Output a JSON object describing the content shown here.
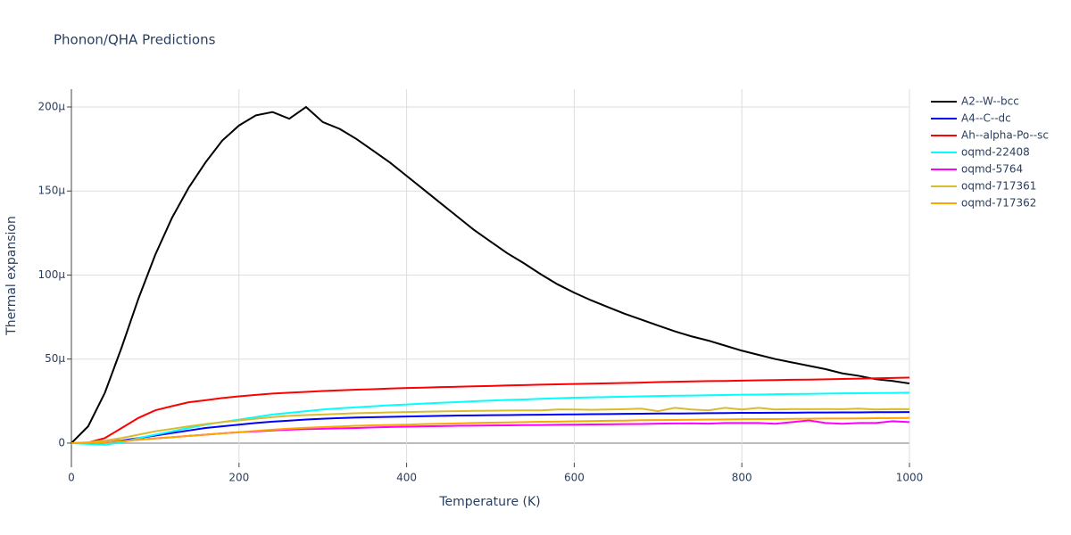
{
  "chart_data": {
    "type": "line",
    "title": "Phonon/QHA Predictions",
    "x_label": "Temperature (K)",
    "y_label": "Thermal expansion",
    "x": [
      0,
      20,
      40,
      60,
      80,
      100,
      120,
      140,
      160,
      180,
      200,
      220,
      240,
      260,
      280,
      300,
      320,
      340,
      360,
      380,
      400,
      420,
      440,
      460,
      480,
      500,
      520,
      540,
      560,
      580,
      600,
      620,
      640,
      660,
      680,
      700,
      720,
      740,
      760,
      780,
      800,
      820,
      840,
      860,
      880,
      900,
      920,
      940,
      960,
      980,
      1000
    ],
    "xlim": [
      0,
      1000
    ],
    "xticks": [
      0,
      200,
      400,
      600,
      800,
      1000
    ],
    "ylim": [
      -1.17e-05,
      0.0002106
    ],
    "yticks": [
      0,
      {
        "value": 5e-05,
        "label": "50µ"
      },
      {
        "value": 0.0001,
        "label": "100µ"
      },
      {
        "value": 0.00015,
        "label": "150µ"
      },
      {
        "value": 0.0002,
        "label": "200µ"
      }
    ],
    "grid": true,
    "series": [
      {
        "name": "A2--W--bcc",
        "color": "#000000",
        "values": [
          0.0,
          1e-05,
          3e-05,
          5.7e-05,
          8.6e-05,
          0.000112,
          0.000134,
          0.000152,
          0.000167,
          0.00018,
          0.000189,
          0.000195,
          0.000197,
          0.000193,
          0.0002,
          0.000191,
          0.000187,
          0.000181,
          0.000174,
          0.000167,
          0.000159,
          0.000151,
          0.000143,
          0.000135,
          0.000127,
          0.00012,
          0.000113,
          0.000107,
          0.0001005,
          9.45e-05,
          8.95e-05,
          8.5e-05,
          8.1e-05,
          7.7e-05,
          7.35e-05,
          7e-05,
          6.65e-05,
          6.35e-05,
          6.1e-05,
          5.8e-05,
          5.5e-05,
          5.25e-05,
          5e-05,
          4.8e-05,
          4.6e-05,
          4.4e-05,
          4.15e-05,
          4e-05,
          3.8e-05,
          3.7e-05,
          3.55e-05
        ]
      },
      {
        "name": "A4--C--dc",
        "color": "#0000ff",
        "values": [
          0.0,
          0.0,
          5e-07,
          1.5e-06,
          3e-06,
          4.5e-06,
          6e-06,
          7.5e-06,
          9e-06,
          1e-05,
          1.1e-05,
          1.2e-05,
          1.28e-05,
          1.34e-05,
          1.4e-05,
          1.45e-05,
          1.49e-05,
          1.52e-05,
          1.54e-05,
          1.56e-05,
          1.58e-05,
          1.6e-05,
          1.62e-05,
          1.64e-05,
          1.65e-05,
          1.66e-05,
          1.67e-05,
          1.68e-05,
          1.69e-05,
          1.7e-05,
          1.71e-05,
          1.72e-05,
          1.73e-05,
          1.74e-05,
          1.75e-05,
          1.76e-05,
          1.76e-05,
          1.77e-05,
          1.78e-05,
          1.79e-05,
          1.8e-05,
          1.8e-05,
          1.81e-05,
          1.81e-05,
          1.82e-05,
          1.82e-05,
          1.83e-05,
          1.83e-05,
          1.84e-05,
          1.84e-05,
          1.85e-05
        ]
      },
      {
        "name": "Ah--alpha-Po--sc",
        "color": "#ff0000",
        "values": [
          0.0,
          3e-07,
          3e-06,
          9e-06,
          1.5e-05,
          1.95e-05,
          2.2e-05,
          2.43e-05,
          2.55e-05,
          2.68e-05,
          2.78e-05,
          2.87e-05,
          2.95e-05,
          3e-05,
          3.05e-05,
          3.1e-05,
          3.14e-05,
          3.18e-05,
          3.21e-05,
          3.25e-05,
          3.28e-05,
          3.3e-05,
          3.33e-05,
          3.35e-05,
          3.38e-05,
          3.4e-05,
          3.43e-05,
          3.45e-05,
          3.48e-05,
          3.5e-05,
          3.52e-05,
          3.54e-05,
          3.56e-05,
          3.58e-05,
          3.6e-05,
          3.63e-05,
          3.65e-05,
          3.67e-05,
          3.69e-05,
          3.7e-05,
          3.72e-05,
          3.74e-05,
          3.75e-05,
          3.77e-05,
          3.78e-05,
          3.8e-05,
          3.82e-05,
          3.84e-05,
          3.86e-05,
          3.88e-05,
          3.9e-05
        ]
      },
      {
        "name": "oqmd-22408",
        "color": "#00ffff",
        "values": [
          0.0,
          -5e-07,
          -1e-06,
          5e-07,
          3e-06,
          5e-06,
          7e-06,
          9e-06,
          1.1e-05,
          1.25e-05,
          1.4e-05,
          1.55e-05,
          1.7e-05,
          1.8e-05,
          1.9e-05,
          2e-05,
          2.07e-05,
          2.13e-05,
          2.19e-05,
          2.25e-05,
          2.3e-05,
          2.35e-05,
          2.4e-05,
          2.44e-05,
          2.49e-05,
          2.53e-05,
          2.57e-05,
          2.6e-05,
          2.64e-05,
          2.67e-05,
          2.7e-05,
          2.72e-05,
          2.74e-05,
          2.76e-05,
          2.78e-05,
          2.8e-05,
          2.82e-05,
          2.83e-05,
          2.85e-05,
          2.86e-05,
          2.88e-05,
          2.89e-05,
          2.91e-05,
          2.92e-05,
          2.93e-05,
          2.95e-05,
          2.96e-05,
          2.97e-05,
          2.98e-05,
          2.99e-05,
          3e-05
        ]
      },
      {
        "name": "oqmd-5764",
        "color": "#ff00ff",
        "values": [
          0.0,
          0.0,
          5e-07,
          1.2e-06,
          2e-06,
          2.8e-06,
          3.5e-06,
          4.3e-06,
          5e-06,
          5.8e-06,
          6.5e-06,
          7e-06,
          7.5e-06,
          8e-06,
          8.3e-06,
          8.5e-06,
          8.8e-06,
          9e-06,
          9.3e-06,
          9.6e-06,
          9.8e-06,
          1e-05,
          1.01e-05,
          1.03e-05,
          1.04e-05,
          1.05e-05,
          1.06e-05,
          1.07e-05,
          1.08e-05,
          1.09e-05,
          1.1e-05,
          1.11e-05,
          1.12e-05,
          1.13e-05,
          1.14e-05,
          1.16e-05,
          1.17e-05,
          1.18e-05,
          1.16e-05,
          1.2e-05,
          1.2e-05,
          1.2e-05,
          1.15e-05,
          1.25e-05,
          1.35e-05,
          1.2e-05,
          1.15e-05,
          1.2e-05,
          1.2e-05,
          1.3e-05,
          1.25e-05
        ]
      },
      {
        "name": "oqmd-717361",
        "color": "#d9bb2e",
        "values": [
          0.0,
          5e-07,
          1.5e-06,
          3e-06,
          5e-06,
          7e-06,
          8.5e-06,
          1e-05,
          1.13e-05,
          1.25e-05,
          1.35e-05,
          1.45e-05,
          1.55e-05,
          1.62e-05,
          1.67e-05,
          1.7e-05,
          1.74e-05,
          1.78e-05,
          1.8e-05,
          1.83e-05,
          1.85e-05,
          1.87e-05,
          1.89e-05,
          1.9e-05,
          1.92e-05,
          1.93e-05,
          1.94e-05,
          1.95e-05,
          1.95e-05,
          2e-05,
          2e-05,
          1.98e-05,
          2e-05,
          2.02e-05,
          2.05e-05,
          1.9e-05,
          2.1e-05,
          2e-05,
          1.95e-05,
          2.1e-05,
          2e-05,
          2.1e-05,
          2e-05,
          2.03e-05,
          2.02e-05,
          2.03e-05,
          2.02e-05,
          2.05e-05,
          2e-05,
          2.03e-05,
          2.02e-05
        ]
      },
      {
        "name": "oqmd-717362",
        "color": "#ffa500",
        "values": [
          0.0,
          0.0,
          5e-07,
          1.2e-06,
          2e-06,
          2.8e-06,
          3.5e-06,
          4.3e-06,
          5e-06,
          5.8e-06,
          6.5e-06,
          7.3e-06,
          8e-06,
          8.6e-06,
          9.1e-06,
          9.5e-06,
          9.9e-06,
          1.03e-05,
          1.06e-05,
          1.08e-05,
          1.1e-05,
          1.13e-05,
          1.15e-05,
          1.17e-05,
          1.2e-05,
          1.22e-05,
          1.23e-05,
          1.25e-05,
          1.27e-05,
          1.28e-05,
          1.3e-05,
          1.31e-05,
          1.33e-05,
          1.34e-05,
          1.36e-05,
          1.37e-05,
          1.38e-05,
          1.39e-05,
          1.4e-05,
          1.41e-05,
          1.42e-05,
          1.43e-05,
          1.43e-05,
          1.44e-05,
          1.45e-05,
          1.46e-05,
          1.46e-05,
          1.47e-05,
          1.48e-05,
          1.49e-05,
          1.5e-05
        ]
      }
    ]
  }
}
